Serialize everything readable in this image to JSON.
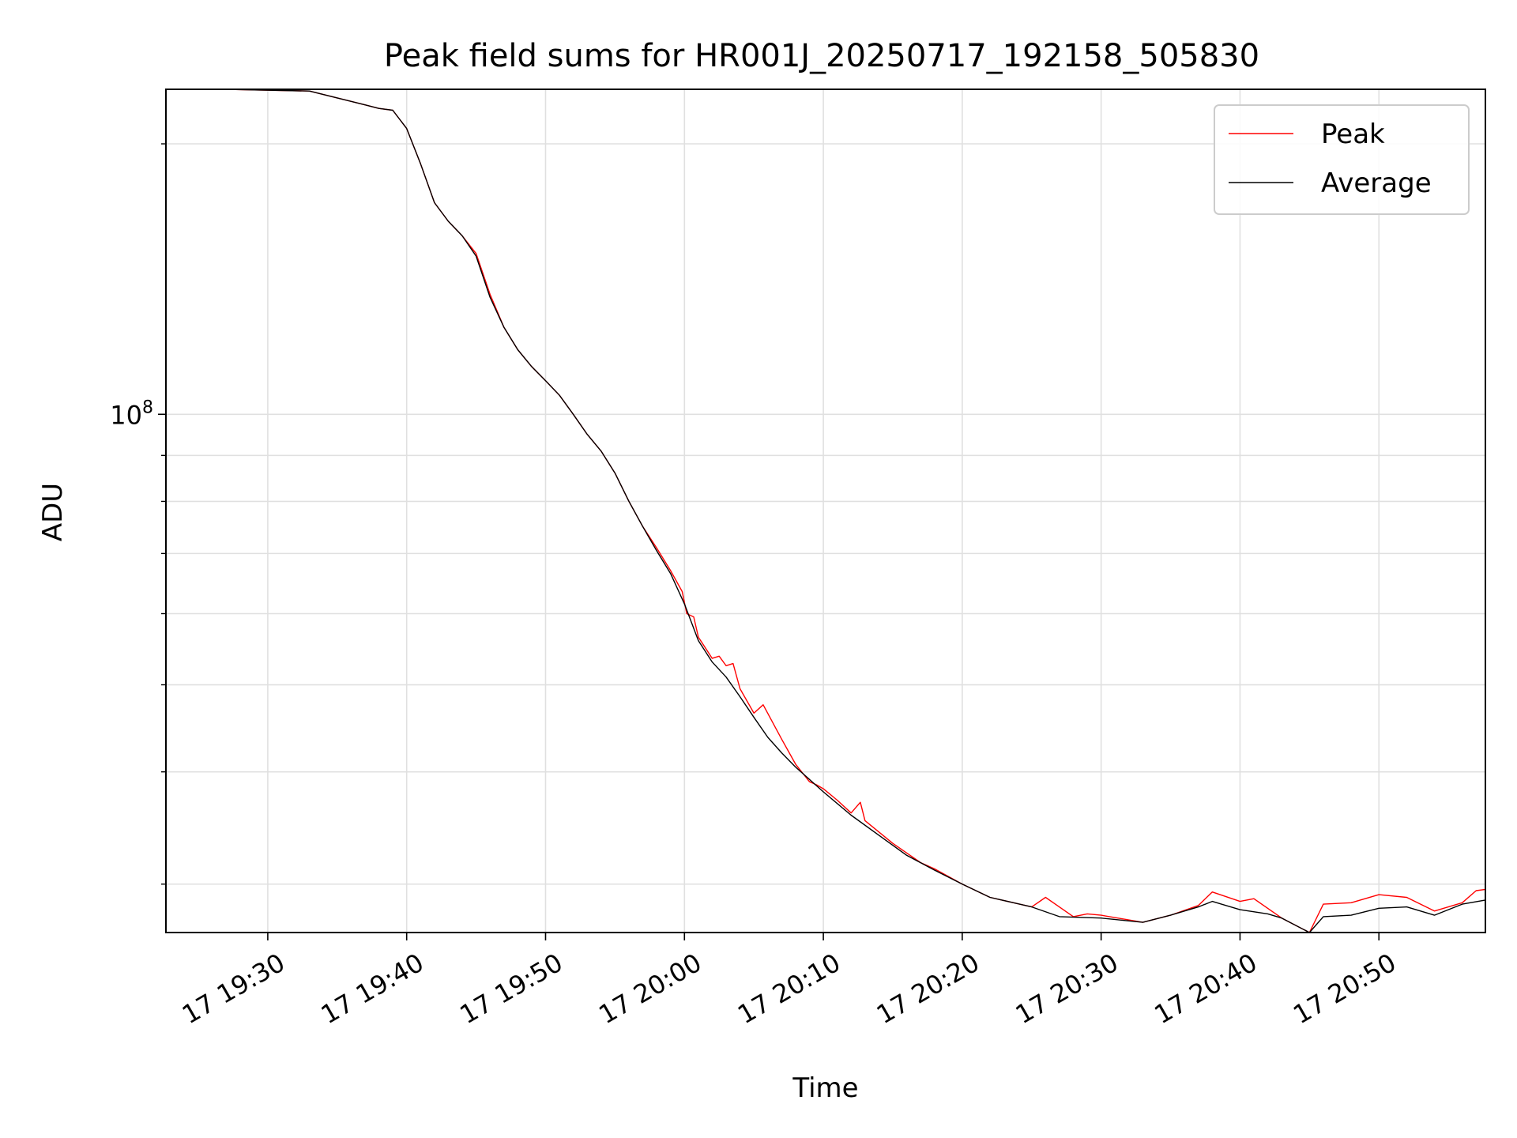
{
  "chart_data": {
    "type": "line",
    "title": "Peak field sums for HR001J_20250717_192158_505830",
    "xlabel": "Time",
    "ylabel": "ADU",
    "yscale": "log",
    "ylim": [
      26500000,
      230000000
    ],
    "xlim": [
      "2025-07-17 19:22:40",
      "2025-07-17 20:57:40"
    ],
    "grid": true,
    "legend_position": "upper right",
    "x_ticks": [
      {
        "time": "2025-07-17 19:30",
        "label": "17 19:30"
      },
      {
        "time": "2025-07-17 19:40",
        "label": "17 19:40"
      },
      {
        "time": "2025-07-17 19:50",
        "label": "17 19:50"
      },
      {
        "time": "2025-07-17 20:00",
        "label": "17 20:00"
      },
      {
        "time": "2025-07-17 20:10",
        "label": "17 20:10"
      },
      {
        "time": "2025-07-17 20:20",
        "label": "17 20:20"
      },
      {
        "time": "2025-07-17 20:30",
        "label": "17 20:30"
      },
      {
        "time": "2025-07-17 20:40",
        "label": "17 20:40"
      },
      {
        "time": "2025-07-17 20:50",
        "label": "17 20:50"
      }
    ],
    "y_major_ticks": [
      {
        "value": 100000000,
        "label_base": "10",
        "label_exp": "8"
      }
    ],
    "y_minor_ticks": [
      30000000,
      40000000,
      50000000,
      60000000,
      70000000,
      80000000,
      90000000,
      200000000
    ],
    "series": [
      {
        "name": "Peak",
        "color": "#ff0000",
        "points": [
          [
            "2025-07-17 19:22:40",
            230000000
          ],
          [
            "2025-07-17 19:27:00",
            230000000
          ],
          [
            "2025-07-17 19:33:00",
            229000000
          ],
          [
            "2025-07-17 19:35:00",
            225000000
          ],
          [
            "2025-07-17 19:37:00",
            221000000
          ],
          [
            "2025-07-17 19:38:00",
            219000000
          ],
          [
            "2025-07-17 19:39:00",
            218000000
          ],
          [
            "2025-07-17 19:40:00",
            208000000
          ],
          [
            "2025-07-17 19:41:00",
            190000000
          ],
          [
            "2025-07-17 19:42:00",
            172000000
          ],
          [
            "2025-07-17 19:43:00",
            164000000
          ],
          [
            "2025-07-17 19:44:00",
            158000000
          ],
          [
            "2025-07-17 19:45:00",
            151000000
          ],
          [
            "2025-07-17 19:46:00",
            136000000
          ],
          [
            "2025-07-17 19:47:00",
            125000000
          ],
          [
            "2025-07-17 19:48:00",
            118000000
          ],
          [
            "2025-07-17 19:49:00",
            113000000
          ],
          [
            "2025-07-17 19:50:00",
            109000000
          ],
          [
            "2025-07-17 19:51:00",
            105000000
          ],
          [
            "2025-07-17 19:52:00",
            100000000
          ],
          [
            "2025-07-17 19:53:00",
            95000000
          ],
          [
            "2025-07-17 19:54:00",
            91000000
          ],
          [
            "2025-07-17 19:55:00",
            86000000
          ],
          [
            "2025-07-17 19:56:00",
            80000000
          ],
          [
            "2025-07-17 19:57:00",
            75000000
          ],
          [
            "2025-07-17 19:58:00",
            71000000
          ],
          [
            "2025-07-17 19:59:00",
            67000000
          ],
          [
            "2025-07-17 19:59:50",
            63500000
          ],
          [
            "2025-07-17 20:00:10",
            60000000
          ],
          [
            "2025-07-17 20:00:40",
            59500000
          ],
          [
            "2025-07-17 20:01:00",
            56500000
          ],
          [
            "2025-07-17 20:02:00",
            53500000
          ],
          [
            "2025-07-17 20:02:30",
            53800000
          ],
          [
            "2025-07-17 20:03:00",
            52500000
          ],
          [
            "2025-07-17 20:03:30",
            52800000
          ],
          [
            "2025-07-17 20:04:00",
            49500000
          ],
          [
            "2025-07-17 20:05:00",
            46500000
          ],
          [
            "2025-07-17 20:05:40",
            47500000
          ],
          [
            "2025-07-17 20:07:00",
            43500000
          ],
          [
            "2025-07-17 20:08:00",
            40800000
          ],
          [
            "2025-07-17 20:09:00",
            39000000
          ],
          [
            "2025-07-17 20:09:30",
            38700000
          ],
          [
            "2025-07-17 20:10:00",
            38300000
          ],
          [
            "2025-07-17 20:11:00",
            37200000
          ],
          [
            "2025-07-17 20:12:00",
            36000000
          ],
          [
            "2025-07-17 20:12:40",
            37000000
          ],
          [
            "2025-07-17 20:13:00",
            35300000
          ],
          [
            "2025-07-17 20:15:00",
            33300000
          ],
          [
            "2025-07-17 20:17:00",
            31700000
          ],
          [
            "2025-07-17 20:18:00",
            31200000
          ],
          [
            "2025-07-17 20:20:00",
            30000000
          ],
          [
            "2025-07-17 20:22:00",
            29000000
          ],
          [
            "2025-07-17 20:25:00",
            28300000
          ],
          [
            "2025-07-17 20:26:00",
            29000000
          ],
          [
            "2025-07-17 20:28:00",
            27600000
          ],
          [
            "2025-07-17 20:29:00",
            27800000
          ],
          [
            "2025-07-17 20:30:00",
            27700000
          ],
          [
            "2025-07-17 20:33:00",
            27200000
          ],
          [
            "2025-07-17 20:35:00",
            27700000
          ],
          [
            "2025-07-17 20:37:00",
            28400000
          ],
          [
            "2025-07-17 20:38:00",
            29400000
          ],
          [
            "2025-07-17 20:40:00",
            28700000
          ],
          [
            "2025-07-17 20:41:00",
            28900000
          ],
          [
            "2025-07-17 20:43:00",
            27500000
          ],
          [
            "2025-07-17 20:45:00",
            26500000
          ],
          [
            "2025-07-17 20:46:00",
            28500000
          ],
          [
            "2025-07-17 20:48:00",
            28600000
          ],
          [
            "2025-07-17 20:50:00",
            29200000
          ],
          [
            "2025-07-17 20:52:00",
            29000000
          ],
          [
            "2025-07-17 20:54:00",
            28000000
          ],
          [
            "2025-07-17 20:56:00",
            28600000
          ],
          [
            "2025-07-17 20:57:00",
            29500000
          ],
          [
            "2025-07-17 20:57:40",
            29600000
          ]
        ]
      },
      {
        "name": "Average",
        "color": "#000000",
        "points": [
          [
            "2025-07-17 19:22:40",
            230000000
          ],
          [
            "2025-07-17 19:27:00",
            230000000
          ],
          [
            "2025-07-17 19:33:00",
            229000000
          ],
          [
            "2025-07-17 19:35:00",
            225000000
          ],
          [
            "2025-07-17 19:37:00",
            221000000
          ],
          [
            "2025-07-17 19:38:00",
            219000000
          ],
          [
            "2025-07-17 19:39:00",
            218000000
          ],
          [
            "2025-07-17 19:40:00",
            208000000
          ],
          [
            "2025-07-17 19:41:00",
            190000000
          ],
          [
            "2025-07-17 19:42:00",
            172000000
          ],
          [
            "2025-07-17 19:43:00",
            164000000
          ],
          [
            "2025-07-17 19:44:00",
            158000000
          ],
          [
            "2025-07-17 19:45:00",
            150000000
          ],
          [
            "2025-07-17 19:46:00",
            135000000
          ],
          [
            "2025-07-17 19:47:00",
            125000000
          ],
          [
            "2025-07-17 19:48:00",
            118000000
          ],
          [
            "2025-07-17 19:49:00",
            113000000
          ],
          [
            "2025-07-17 19:50:00",
            109000000
          ],
          [
            "2025-07-17 19:51:00",
            105000000
          ],
          [
            "2025-07-17 19:52:00",
            100000000
          ],
          [
            "2025-07-17 19:53:00",
            95000000
          ],
          [
            "2025-07-17 19:54:00",
            91000000
          ],
          [
            "2025-07-17 19:55:00",
            86000000
          ],
          [
            "2025-07-17 19:56:00",
            80000000
          ],
          [
            "2025-07-17 19:57:00",
            75000000
          ],
          [
            "2025-07-17 19:58:00",
            70500000
          ],
          [
            "2025-07-17 19:59:00",
            66500000
          ],
          [
            "2025-07-17 20:00:00",
            61500000
          ],
          [
            "2025-07-17 20:01:00",
            56000000
          ],
          [
            "2025-07-17 20:02:00",
            53000000
          ],
          [
            "2025-07-17 20:03:00",
            51000000
          ],
          [
            "2025-07-17 20:04:00",
            48500000
          ],
          [
            "2025-07-17 20:05:00",
            46000000
          ],
          [
            "2025-07-17 20:06:00",
            43700000
          ],
          [
            "2025-07-17 20:07:00",
            42000000
          ],
          [
            "2025-07-17 20:08:00",
            40500000
          ],
          [
            "2025-07-17 20:10:00",
            38000000
          ],
          [
            "2025-07-17 20:12:00",
            35800000
          ],
          [
            "2025-07-17 20:14:00",
            34000000
          ],
          [
            "2025-07-17 20:16:00",
            32300000
          ],
          [
            "2025-07-17 20:18:00",
            31100000
          ],
          [
            "2025-07-17 20:20:00",
            30000000
          ],
          [
            "2025-07-17 20:22:00",
            29000000
          ],
          [
            "2025-07-17 20:25:00",
            28300000
          ],
          [
            "2025-07-17 20:27:00",
            27600000
          ],
          [
            "2025-07-17 20:30:00",
            27500000
          ],
          [
            "2025-07-17 20:33:00",
            27200000
          ],
          [
            "2025-07-17 20:35:00",
            27700000
          ],
          [
            "2025-07-17 20:37:00",
            28300000
          ],
          [
            "2025-07-17 20:38:00",
            28700000
          ],
          [
            "2025-07-17 20:40:00",
            28100000
          ],
          [
            "2025-07-17 20:42:00",
            27800000
          ],
          [
            "2025-07-17 20:43:00",
            27500000
          ],
          [
            "2025-07-17 20:45:00",
            26500000
          ],
          [
            "2025-07-17 20:46:00",
            27600000
          ],
          [
            "2025-07-17 20:48:00",
            27700000
          ],
          [
            "2025-07-17 20:50:00",
            28200000
          ],
          [
            "2025-07-17 20:52:00",
            28300000
          ],
          [
            "2025-07-17 20:54:00",
            27700000
          ],
          [
            "2025-07-17 20:56:00",
            28500000
          ],
          [
            "2025-07-17 20:57:40",
            28800000
          ]
        ]
      }
    ]
  }
}
